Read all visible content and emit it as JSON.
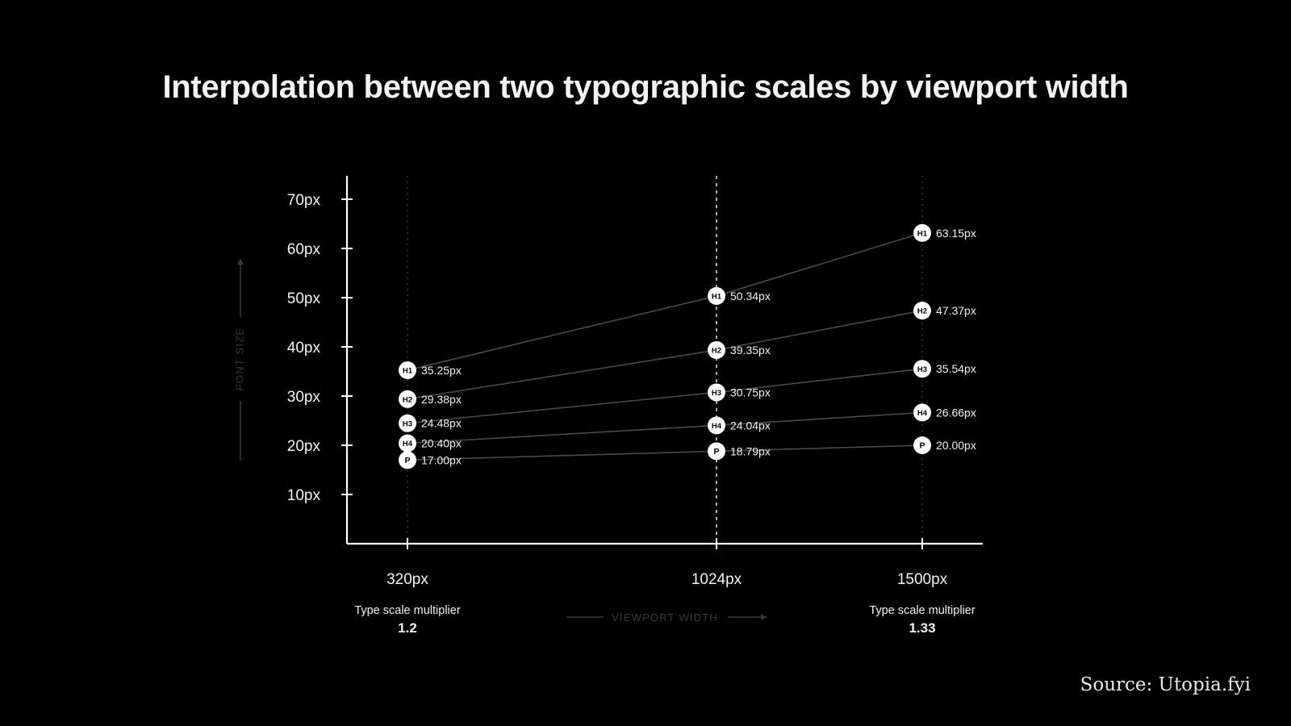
{
  "title": "Interpolation between two typographic scales by viewport width",
  "source": "Source: Utopia.fyi",
  "multipliers": [
    {
      "label": "Type scale multiplier",
      "value": "1.2"
    },
    {
      "label": "Type scale multiplier",
      "value": "1.33"
    }
  ],
  "colors": {
    "background": "#000000",
    "text": "#f2f2f2",
    "line": "#4a4a4a",
    "axis": "#ffffff",
    "muted": "#3a3a3a"
  },
  "chart_data": {
    "type": "line",
    "title": "Interpolation between two typographic scales by viewport width",
    "xlabel": "VIEWPORT WIDTH",
    "ylabel": "FONT SIZE",
    "x": [
      320,
      1024,
      1500
    ],
    "x_tick_labels": [
      "320px",
      "1024px",
      "1500px"
    ],
    "y_ticks": [
      10,
      20,
      30,
      40,
      50,
      60,
      70
    ],
    "y_tick_labels": [
      "10px",
      "20px",
      "30px",
      "40px",
      "50px",
      "60px",
      "70px"
    ],
    "ylim": [
      0,
      75
    ],
    "grid": false,
    "series": [
      {
        "name": "H1",
        "values": [
          35.25,
          50.34,
          63.15
        ],
        "labels": [
          "35.25px",
          "50.34px",
          "63.15px"
        ]
      },
      {
        "name": "H2",
        "values": [
          29.38,
          39.35,
          47.37
        ],
        "labels": [
          "29.38px",
          "39.35px",
          "47.37px"
        ]
      },
      {
        "name": "H3",
        "values": [
          24.48,
          30.75,
          35.54
        ],
        "labels": [
          "24.48px",
          "30.75px",
          "35.54px"
        ]
      },
      {
        "name": "H4",
        "values": [
          20.4,
          24.04,
          26.66
        ],
        "labels": [
          "20.40px",
          "24.04px",
          "26.66px"
        ]
      },
      {
        "name": "P",
        "values": [
          17.0,
          18.79,
          20.0
        ],
        "labels": [
          "17.00px",
          "18.79px",
          "20.00px"
        ]
      }
    ]
  }
}
